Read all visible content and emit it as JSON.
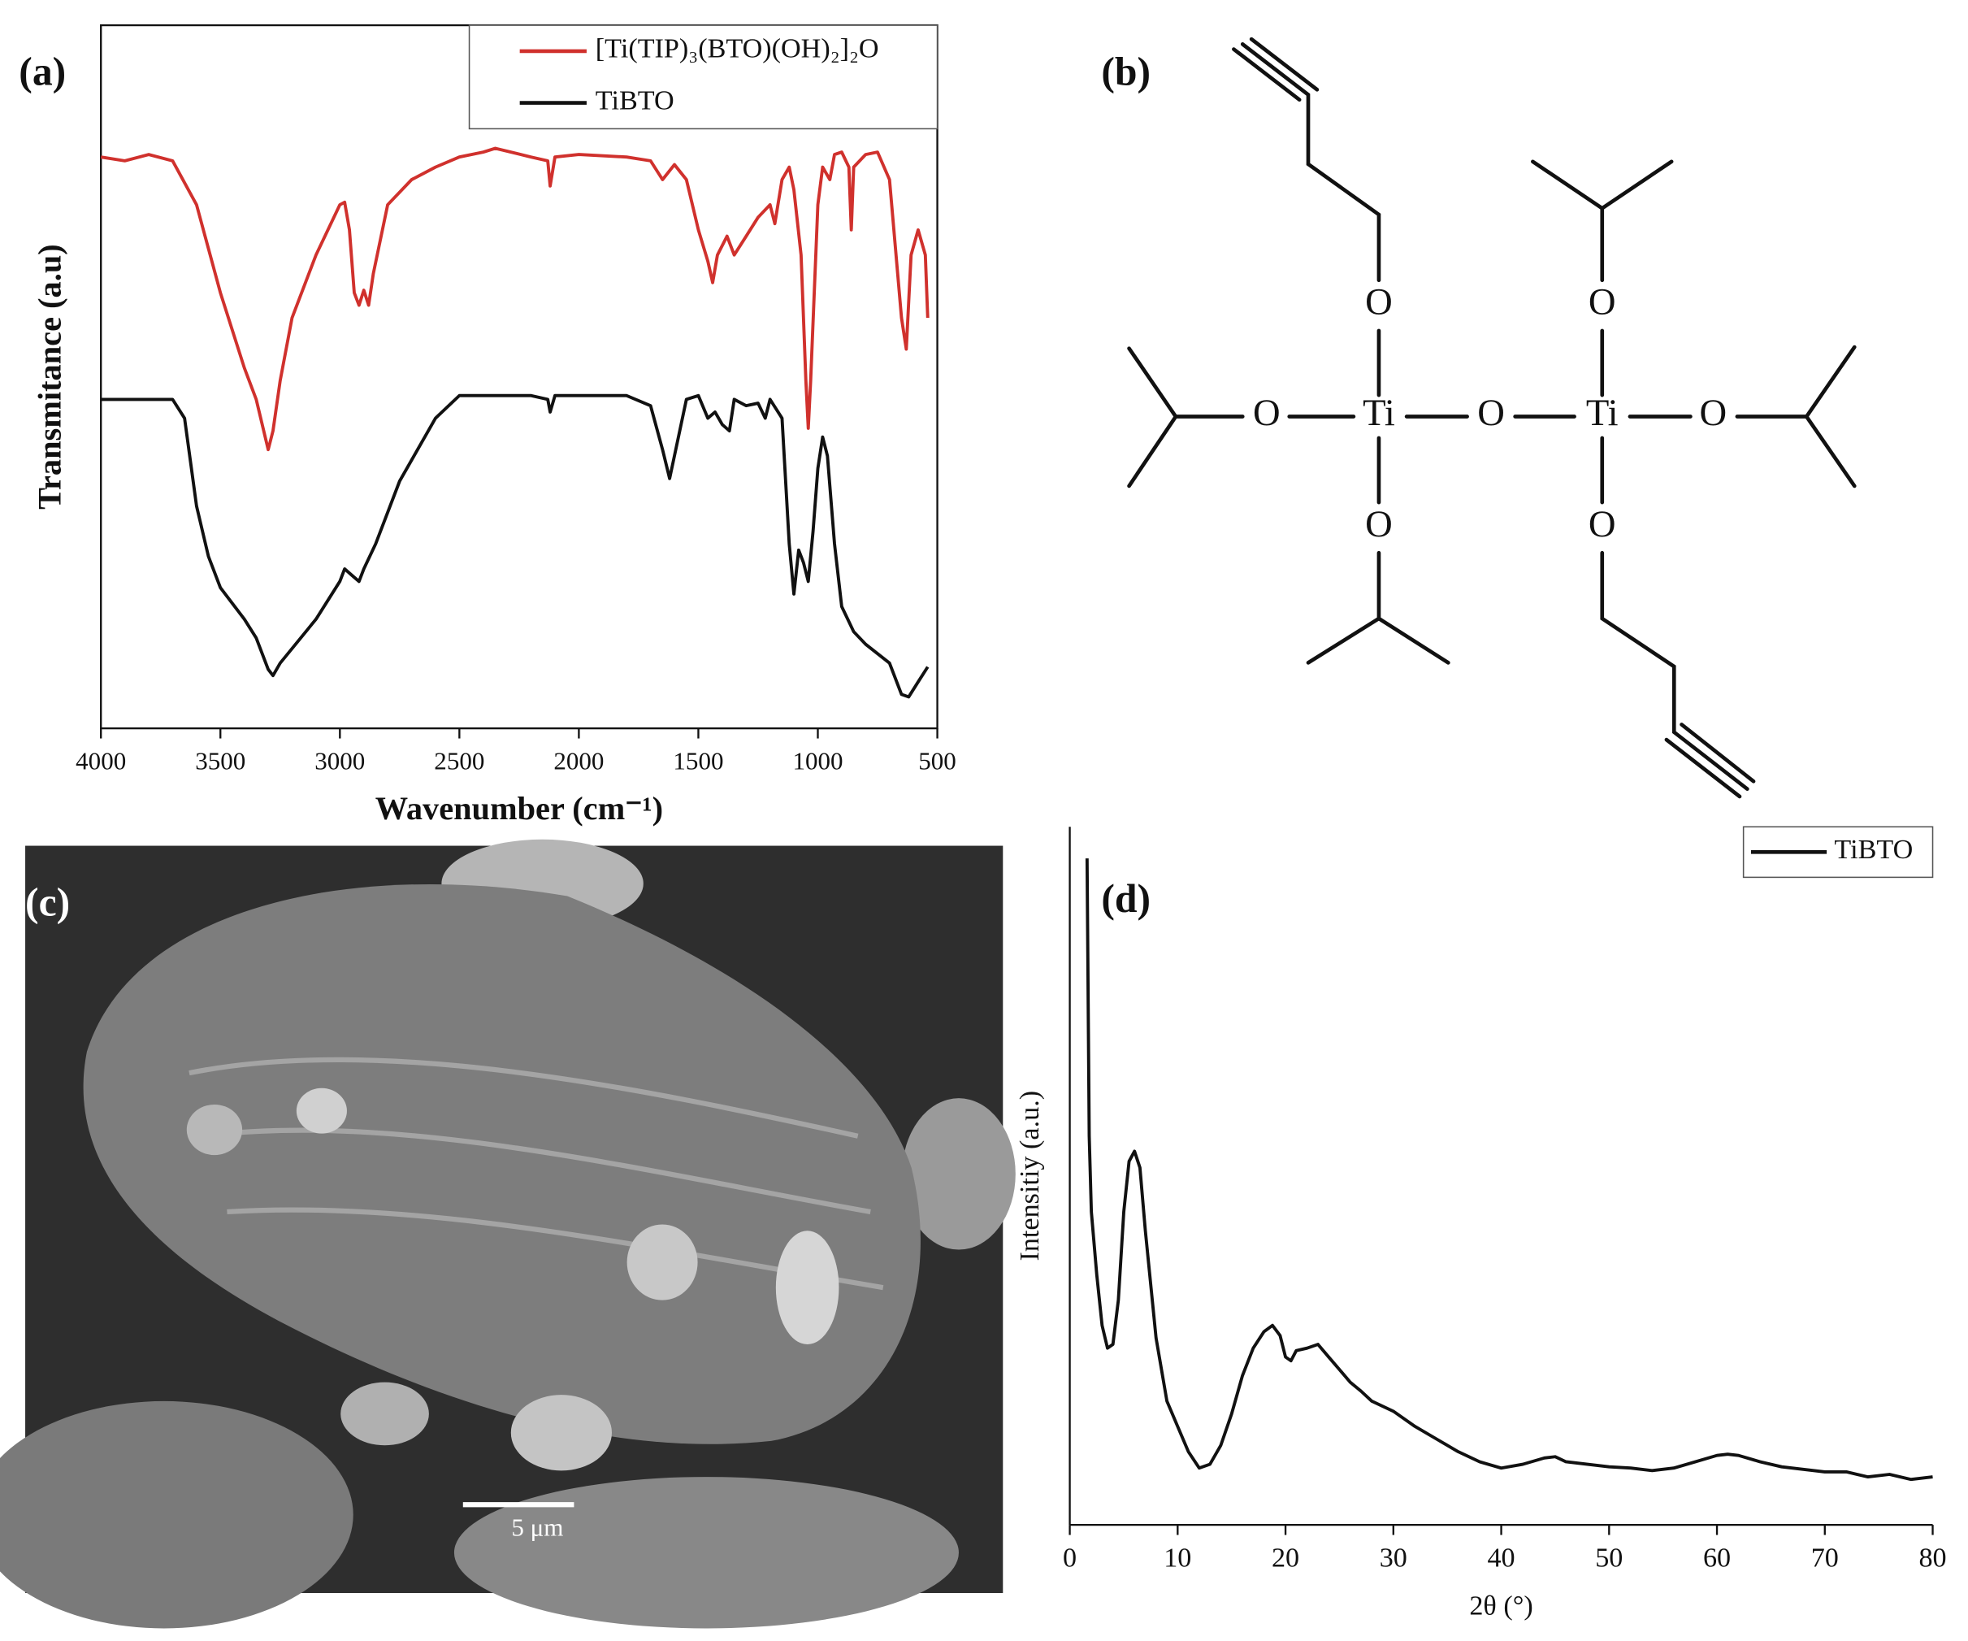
{
  "chart_data": [
    {
      "type": "line",
      "panel_label": "(a)",
      "x_label": "Wavenumber (cm⁻¹)",
      "y_label": "Transmitance (a.u)",
      "xlim": [
        4000,
        500
      ],
      "ylim": [
        0,
        560
      ],
      "xticks": [
        4000,
        3500,
        3000,
        2500,
        2000,
        1500,
        1000,
        500
      ],
      "legend": "upper right",
      "series": [
        {
          "name": "[Ti(TIP)₃(BTO)(OH)₂]₂O",
          "color": "#d0312d",
          "x": [
            4000,
            3900,
            3800,
            3700,
            3600,
            3500,
            3400,
            3350,
            3300,
            3280,
            3250,
            3200,
            3100,
            3000,
            2980,
            2960,
            2940,
            2920,
            2900,
            2880,
            2860,
            2800,
            2700,
            2600,
            2500,
            2400,
            2350,
            2200,
            2130,
            2120,
            2100,
            2000,
            1800,
            1700,
            1650,
            1600,
            1550,
            1500,
            1460,
            1440,
            1420,
            1380,
            1350,
            1300,
            1250,
            1200,
            1180,
            1150,
            1120,
            1100,
            1070,
            1050,
            1040,
            1030,
            1000,
            980,
            950,
            930,
            900,
            870,
            860,
            850,
            800,
            750,
            700,
            650,
            630,
            610,
            580,
            550,
            540
          ],
          "values": [
            455,
            452,
            457,
            452,
            417,
            347,
            287,
            262,
            222,
            237,
            277,
            327,
            377,
            417,
            419,
            397,
            347,
            337,
            349,
            337,
            362,
            417,
            437,
            447,
            455,
            459,
            462,
            455,
            452,
            432,
            455,
            457,
            455,
            452,
            437,
            449,
            437,
            397,
            372,
            355,
            377,
            392,
            377,
            392,
            407,
            417,
            402,
            437,
            447,
            429,
            377,
            277,
            239,
            277,
            417,
            447,
            437,
            457,
            459,
            447,
            397,
            447,
            457,
            459,
            437,
            327,
            302,
            377,
            397,
            377,
            327
          ]
        },
        {
          "name": "TiBTO",
          "color": "#111111",
          "x": [
            4000,
            3800,
            3700,
            3650,
            3600,
            3550,
            3500,
            3400,
            3350,
            3300,
            3280,
            3250,
            3100,
            3000,
            2980,
            2950,
            2920,
            2900,
            2850,
            2750,
            2600,
            2500,
            2400,
            2200,
            2130,
            2120,
            2100,
            1800,
            1700,
            1650,
            1620,
            1600,
            1550,
            1500,
            1460,
            1430,
            1400,
            1370,
            1350,
            1300,
            1250,
            1220,
            1200,
            1150,
            1120,
            1100,
            1080,
            1060,
            1040,
            1020,
            1000,
            980,
            960,
            930,
            900,
            850,
            800,
            700,
            650,
            620,
            580,
            540
          ],
          "values": [
            262,
            262,
            262,
            247,
            177,
            137,
            112,
            87,
            72,
            47,
            42,
            52,
            87,
            117,
            127,
            122,
            117,
            127,
            147,
            197,
            247,
            265,
            265,
            265,
            262,
            252,
            265,
            265,
            257,
            222,
            199,
            217,
            262,
            265,
            247,
            252,
            242,
            237,
            262,
            257,
            259,
            247,
            262,
            247,
            147,
            107,
            142,
            132,
            117,
            157,
            207,
            232,
            217,
            147,
            97,
            77,
            67,
            52,
            27,
            25,
            37,
            49
          ]
        }
      ]
    },
    {
      "type": "line",
      "panel_label": "(d)",
      "x_label": "2θ (°)",
      "y_label": "Intensitiy (a.u.)",
      "xlim": [
        0,
        80
      ],
      "ylim": [
        0,
        553
      ],
      "xticks": [
        0,
        10,
        20,
        30,
        40,
        50,
        60,
        70,
        80
      ],
      "legend": "upper right",
      "series": [
        {
          "name": "TiBTO",
          "color": "#111111",
          "x": [
            1.6,
            1.8,
            2,
            2.5,
            3,
            3.5,
            4,
            4.5,
            5,
            5.5,
            6,
            6.5,
            7,
            8,
            9,
            10,
            11,
            12,
            13,
            14,
            15,
            16,
            17,
            18,
            18.8,
            19.5,
            20,
            20.5,
            21,
            22,
            23,
            24,
            25,
            26,
            27,
            28,
            30,
            32,
            34,
            36,
            38,
            40,
            42,
            44,
            45,
            46,
            48,
            50,
            52,
            54,
            56,
            58,
            60,
            61,
            62,
            64,
            66,
            68,
            70,
            72,
            74,
            76,
            78,
            80
          ],
          "values": [
            528,
            308,
            248,
            198,
            158,
            140,
            143,
            178,
            248,
            288,
            296,
            283,
            233,
            148,
            98,
            78,
            58,
            45,
            48,
            63,
            88,
            118,
            140,
            153,
            158,
            150,
            133,
            130,
            138,
            140,
            143,
            133,
            123,
            113,
            106,
            98,
            90,
            78,
            68,
            58,
            50,
            45,
            48,
            53,
            54,
            50,
            48,
            46,
            45,
            43,
            45,
            50,
            55,
            56,
            55,
            50,
            46,
            44,
            42,
            42,
            38,
            40,
            36,
            38
          ]
        }
      ]
    }
  ],
  "diagram": {
    "panel_label": "(b)",
    "atoms": [
      "O",
      "O",
      "O",
      "Ti",
      "O",
      "Ti",
      "O",
      "O",
      "O"
    ]
  },
  "image": {
    "panel_label": "(c)",
    "scale_bar": "5 μm"
  }
}
